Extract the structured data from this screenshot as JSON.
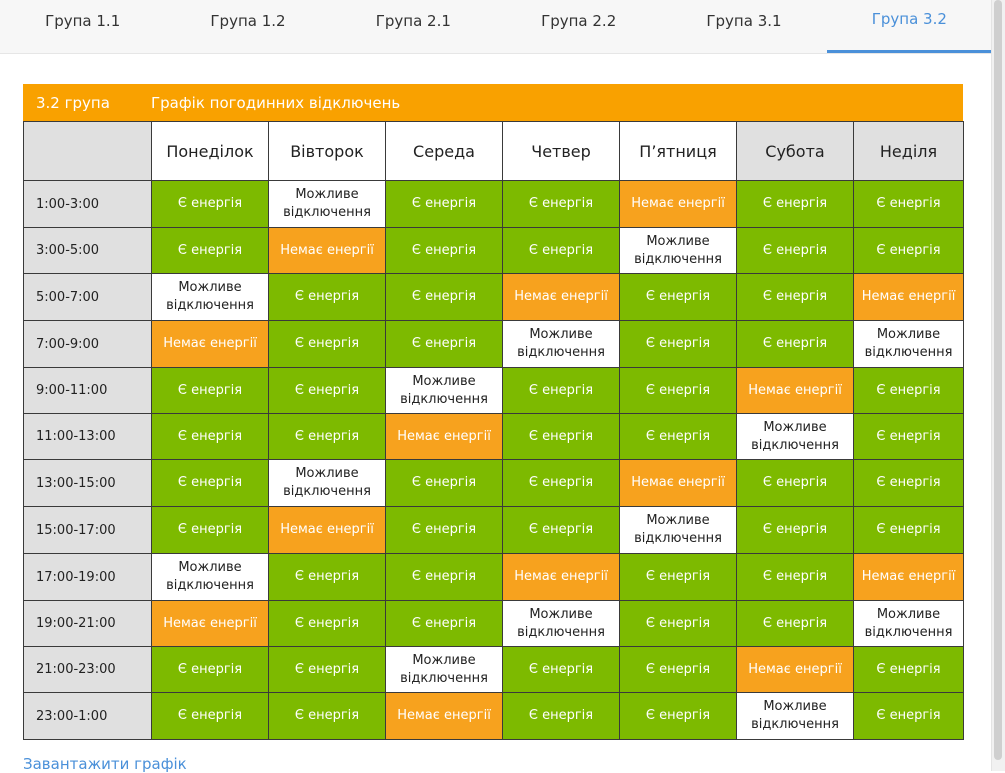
{
  "tabs": [
    "Група 1.1",
    "Група 1.2",
    "Група 2.1",
    "Група 2.2",
    "Група 3.1",
    "Група 3.2"
  ],
  "active_tab_index": 5,
  "header": {
    "group_label": "3.2 група",
    "title": "Графік погодинних відключень"
  },
  "days": [
    "Понеділок",
    "Вівторок",
    "Середа",
    "Четвер",
    "П’ятниця",
    "Субота",
    "Неділя"
  ],
  "status_labels": {
    "yes": "Є енергія",
    "no": "Немає енергії",
    "maybe": "Можливе відключення"
  },
  "colors": {
    "yes": "#7dba00",
    "no": "#f7a21e",
    "maybe": "#ffffff",
    "header": "#f9a100",
    "link": "#4a90d9"
  },
  "rows": [
    {
      "time": "1:00-3:00",
      "cells": [
        "yes",
        "maybe",
        "yes",
        "yes",
        "no",
        "yes",
        "yes"
      ]
    },
    {
      "time": "3:00-5:00",
      "cells": [
        "yes",
        "no",
        "yes",
        "yes",
        "maybe",
        "yes",
        "yes"
      ]
    },
    {
      "time": "5:00-7:00",
      "cells": [
        "maybe",
        "yes",
        "yes",
        "no",
        "yes",
        "yes",
        "no"
      ]
    },
    {
      "time": "7:00-9:00",
      "cells": [
        "no",
        "yes",
        "yes",
        "maybe",
        "yes",
        "yes",
        "maybe"
      ]
    },
    {
      "time": "9:00-11:00",
      "cells": [
        "yes",
        "yes",
        "maybe",
        "yes",
        "yes",
        "no",
        "yes"
      ]
    },
    {
      "time": "11:00-13:00",
      "cells": [
        "yes",
        "yes",
        "no",
        "yes",
        "yes",
        "maybe",
        "yes"
      ]
    },
    {
      "time": "13:00-15:00",
      "cells": [
        "yes",
        "maybe",
        "yes",
        "yes",
        "no",
        "yes",
        "yes"
      ]
    },
    {
      "time": "15:00-17:00",
      "cells": [
        "yes",
        "no",
        "yes",
        "yes",
        "maybe",
        "yes",
        "yes"
      ]
    },
    {
      "time": "17:00-19:00",
      "cells": [
        "maybe",
        "yes",
        "yes",
        "no",
        "yes",
        "yes",
        "no"
      ]
    },
    {
      "time": "19:00-21:00",
      "cells": [
        "no",
        "yes",
        "yes",
        "maybe",
        "yes",
        "yes",
        "maybe"
      ]
    },
    {
      "time": "21:00-23:00",
      "cells": [
        "yes",
        "yes",
        "maybe",
        "yes",
        "yes",
        "no",
        "yes"
      ]
    },
    {
      "time": "23:00-1:00",
      "cells": [
        "yes",
        "yes",
        "no",
        "yes",
        "yes",
        "maybe",
        "yes"
      ]
    }
  ],
  "download_link": "Завантажити графік"
}
